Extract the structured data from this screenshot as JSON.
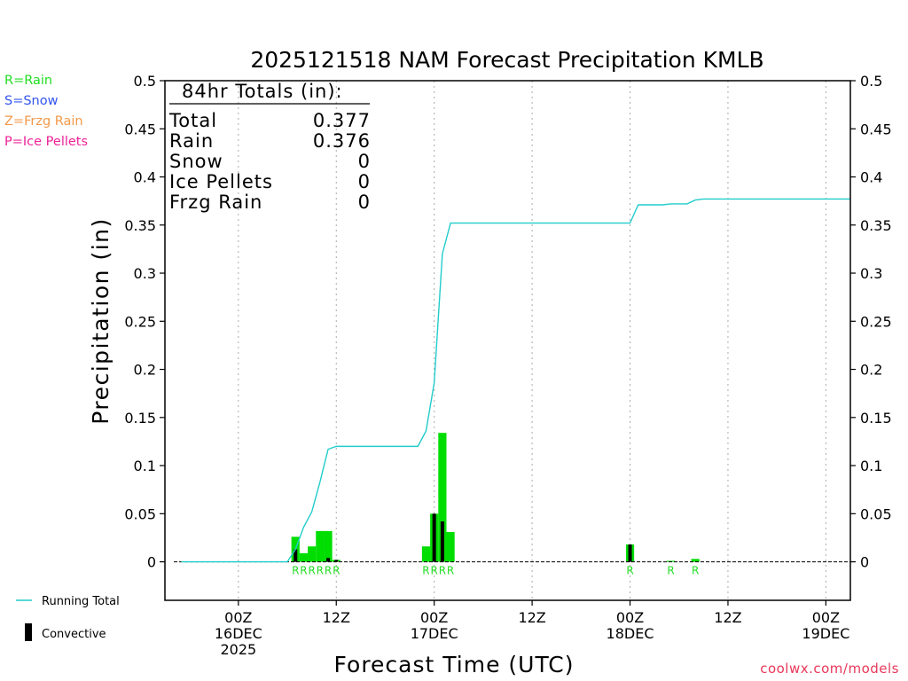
{
  "title": "2025121518 NAM Forecast Precipitation KMLB",
  "ylabel": "Precipitation (in)",
  "xlabel": "Forecast Time (UTC)",
  "type_legend": [
    {
      "label": "R=Rain",
      "color": "#22dd22"
    },
    {
      "label": "S=Snow",
      "color": "#3355ee"
    },
    {
      "label": "Z=Frzg Rain",
      "color": "#f2994a"
    },
    {
      "label": "P=Ice Pellets",
      "color": "#ee2299"
    }
  ],
  "totals": {
    "heading": "84hr Totals (in):",
    "rows": [
      {
        "label": "Total",
        "value": "0.377"
      },
      {
        "label": "Rain",
        "value": "0.376"
      },
      {
        "label": "Snow",
        "value": "0"
      },
      {
        "label": "Ice Pellets",
        "value": "0"
      },
      {
        "label": "Frzg Rain",
        "value": "0"
      }
    ]
  },
  "bottom_legend": {
    "running_total": "Running Total",
    "convective": "Convective"
  },
  "footer": "coolwx.com/models",
  "colors": {
    "rain_bar": "#00dd00",
    "convective_bar": "#000000",
    "running_total": "#22cccc",
    "grid": "#aaaaaa",
    "link": "#e8385a"
  },
  "chart_data": {
    "type": "bar",
    "x_unit": "forecast hour",
    "xlim": [
      -9,
      75
    ],
    "ylim": [
      -0.04,
      0.5
    ],
    "yticks": [
      0,
      0.05,
      0.1,
      0.15,
      0.2,
      0.25,
      0.3,
      0.35,
      0.4,
      0.45,
      0.5
    ],
    "ytick_labels": [
      "0",
      "0.05",
      "0.1",
      "0.15",
      "0.2",
      "0.25",
      "0.3",
      "0.35",
      "0.4",
      "0.45",
      "0.5"
    ],
    "xticks": [
      {
        "hour": 0,
        "lines": [
          "00Z",
          "16DEC",
          "2025"
        ]
      },
      {
        "hour": 12,
        "lines": [
          "12Z"
        ]
      },
      {
        "hour": 24,
        "lines": [
          "00Z",
          "17DEC"
        ]
      },
      {
        "hour": 36,
        "lines": [
          "12Z"
        ]
      },
      {
        "hour": 48,
        "lines": [
          "00Z",
          "18DEC"
        ]
      },
      {
        "hour": 60,
        "lines": [
          "12Z"
        ]
      },
      {
        "hour": 72,
        "lines": [
          "00Z",
          "19DEC"
        ]
      }
    ],
    "bar_width_hours": 1,
    "precip_bars": [
      {
        "hour": 7,
        "value": 0.026,
        "convective": 0.013
      },
      {
        "hour": 8,
        "value": 0.009,
        "convective": 0
      },
      {
        "hour": 9,
        "value": 0.016,
        "convective": 0
      },
      {
        "hour": 10,
        "value": 0.032,
        "convective": 0
      },
      {
        "hour": 11,
        "value": 0.032,
        "convective": 0.004
      },
      {
        "hour": 12,
        "value": 0.002,
        "convective": 0.002
      },
      {
        "hour": 23,
        "value": 0.016,
        "convective": 0
      },
      {
        "hour": 24,
        "value": 0.05,
        "convective": 0.05
      },
      {
        "hour": 25,
        "value": 0.134,
        "convective": 0.042
      },
      {
        "hour": 26,
        "value": 0.031,
        "convective": 0
      },
      {
        "hour": 48,
        "value": 0.018,
        "convective": 0.018
      },
      {
        "hour": 53,
        "value": 0.001,
        "convective": 0
      },
      {
        "hour": 56,
        "value": 0.003,
        "convective": 0
      }
    ],
    "precip_type_marks": [
      {
        "hour": 7,
        "type": "R"
      },
      {
        "hour": 8,
        "type": "R"
      },
      {
        "hour": 9,
        "type": "R"
      },
      {
        "hour": 10,
        "type": "R"
      },
      {
        "hour": 11,
        "type": "R"
      },
      {
        "hour": 12,
        "type": "R"
      },
      {
        "hour": 23,
        "type": "R"
      },
      {
        "hour": 24,
        "type": "R"
      },
      {
        "hour": 25,
        "type": "R"
      },
      {
        "hour": 26,
        "type": "R"
      },
      {
        "hour": 48,
        "type": "R"
      },
      {
        "hour": 53,
        "type": "R"
      },
      {
        "hour": 56,
        "type": "R"
      }
    ],
    "running_total": [
      [
        -9,
        0
      ],
      [
        6,
        0
      ],
      [
        7,
        0.013
      ],
      [
        8,
        0.036
      ],
      [
        9,
        0.052
      ],
      [
        10,
        0.083
      ],
      [
        11,
        0.117
      ],
      [
        12,
        0.12
      ],
      [
        21,
        0.12
      ],
      [
        22,
        0.12
      ],
      [
        23,
        0.136
      ],
      [
        24,
        0.186
      ],
      [
        25,
        0.32
      ],
      [
        26,
        0.352
      ],
      [
        48,
        0.352
      ],
      [
        49,
        0.371
      ],
      [
        52,
        0.371
      ],
      [
        53,
        0.372
      ],
      [
        55,
        0.372
      ],
      [
        56,
        0.376
      ],
      [
        57,
        0.377
      ],
      [
        75,
        0.377
      ]
    ]
  }
}
